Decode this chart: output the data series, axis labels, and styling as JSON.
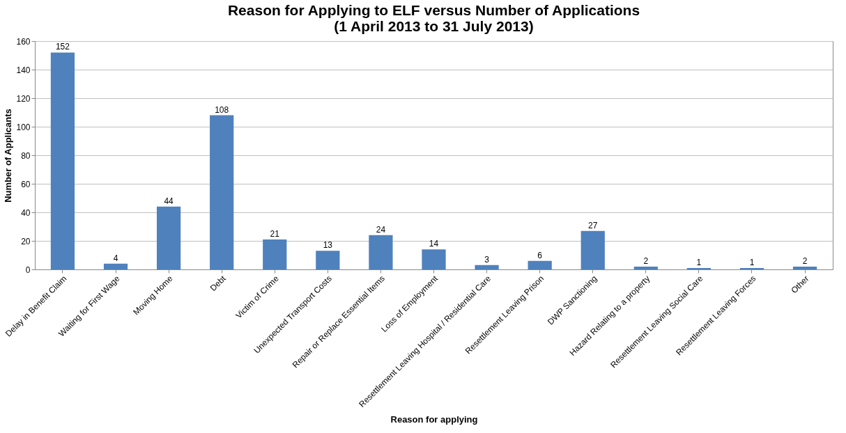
{
  "chart_data": {
    "type": "bar",
    "title": "Reason for Applying to ELF versus Number of Applications\n(1 April 2013 to 31 July 2013)",
    "xlabel": "Reason for applying",
    "ylabel": "Number of Applicants",
    "categories": [
      "Delay in Benefit Claim",
      "Waiting for First Wage",
      "Moving Home",
      "Debt",
      "Victim of Crime",
      "Unexpected Transport Costs",
      "Repair or Replace Essential Items",
      "Loss of Employment",
      "Resettlement Leaving Hospital / Residential Care",
      "Resettlement Leaving Prison",
      "DWP Sanctioning",
      "Hazard Relating to a property",
      "Resettlement Leaving Social Care",
      "Resettlement Leaving Forces",
      "Other"
    ],
    "values": [
      152,
      4,
      44,
      108,
      21,
      13,
      24,
      14,
      3,
      6,
      27,
      2,
      1,
      1,
      2
    ],
    "color": "#4f81bd",
    "ylim": [
      0,
      160
    ],
    "yticks": [
      0,
      20,
      40,
      60,
      80,
      100,
      120,
      140,
      160
    ],
    "grid": "y",
    "data_labels": true
  }
}
